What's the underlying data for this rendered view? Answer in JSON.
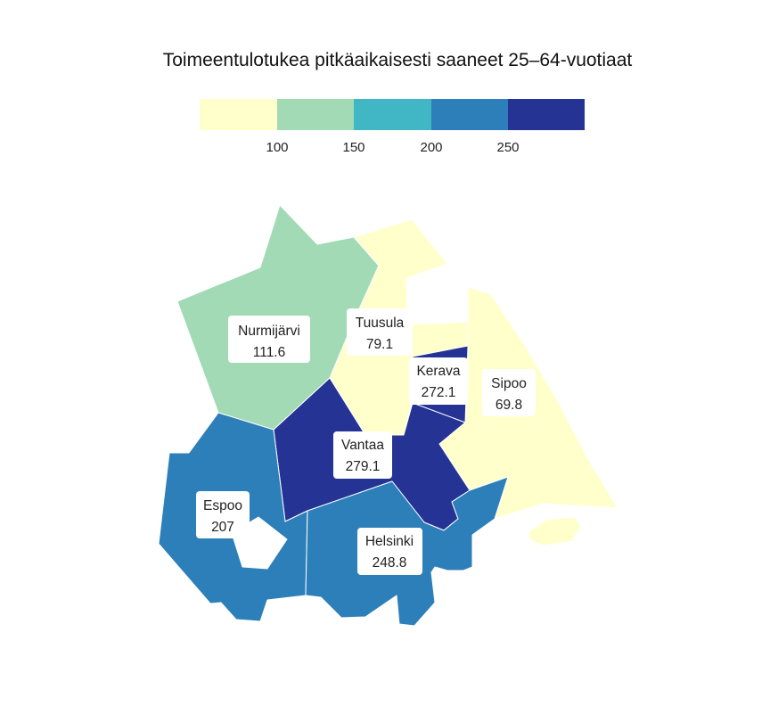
{
  "title": "Toimeentulotukea pitkäaikaisesti saaneet 25–64-vuotiaat",
  "legend": {
    "colors": [
      "#ffffcc",
      "#a1dab4",
      "#41b6c4",
      "#2c7fb8",
      "#253494"
    ],
    "ticks": [
      "100",
      "150",
      "200",
      "250"
    ]
  },
  "regions": [
    {
      "name": "Nurmijärvi",
      "value": "111.6",
      "color": "#a1dab4"
    },
    {
      "name": "Tuusula",
      "value": "79.1",
      "color": "#ffffcc"
    },
    {
      "name": "Kerava",
      "value": "272.1",
      "color": "#253494"
    },
    {
      "name": "Sipoo",
      "value": "69.8",
      "color": "#ffffcc"
    },
    {
      "name": "Vantaa",
      "value": "279.1",
      "color": "#253494"
    },
    {
      "name": "Espoo",
      "value": "207",
      "color": "#2c7fb8"
    },
    {
      "name": "Helsinki",
      "value": "248.8",
      "color": "#2c7fb8"
    }
  ]
}
